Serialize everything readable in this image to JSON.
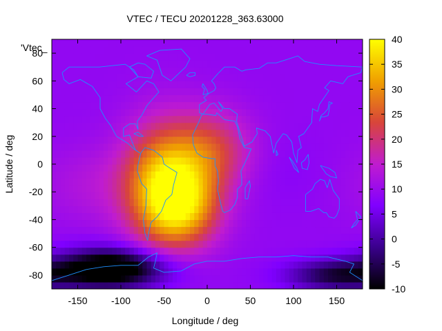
{
  "chart_data": {
    "type": "heatmap",
    "title": "VTEC / TECU 20201228_363.63000",
    "xlabel": "Longitude / deg",
    "ylabel": "Latitude / deg",
    "xlim": [
      -180,
      180
    ],
    "ylim": [
      -90,
      90
    ],
    "x_ticks": [
      -150,
      -100,
      -50,
      0,
      50,
      100,
      150
    ],
    "y_ticks": [
      -80,
      -60,
      -40,
      -20,
      0,
      20,
      40,
      60,
      80
    ],
    "colorbar": {
      "range": [
        -10,
        40
      ],
      "ticks": [
        -10,
        -5,
        0,
        5,
        10,
        15,
        20,
        25,
        30,
        35,
        40
      ],
      "colormap": "gnuplot-pm3d",
      "colors": [
        "#000000",
        "#3a008c",
        "#8000ff",
        "#c01ccf",
        "#d8453a",
        "#f0a000",
        "#ffff00"
      ]
    },
    "overlay_label": "'Vtec_",
    "grid": false,
    "background_tecu": 9,
    "features": [
      {
        "name": "south-american-anomaly-core",
        "lon": -50,
        "lat": -15,
        "peak_tecu": 34,
        "spread_lon": 32,
        "spread_lat": 30
      },
      {
        "name": "south-atlantic-bulge",
        "lon": -25,
        "lat": -30,
        "peak_tecu": 26,
        "spread_lon": 30,
        "spread_lat": 20
      },
      {
        "name": "western-africa-plume",
        "lon": 5,
        "lat": 10,
        "peak_tecu": 22,
        "spread_lon": 32,
        "spread_lat": 20
      },
      {
        "name": "central-pacific-band",
        "lon": -130,
        "lat": -15,
        "peak_tecu": 13,
        "spread_lon": 45,
        "spread_lat": 20
      },
      {
        "name": "indian-ocean-band",
        "lon": 90,
        "lat": -5,
        "peak_tecu": 8,
        "spread_lon": 35,
        "spread_lat": 18
      },
      {
        "name": "siberia-patch",
        "lon": 100,
        "lat": 50,
        "peak_tecu": 9,
        "spread_lon": 40,
        "spread_lat": 12
      },
      {
        "name": "southern-ocean-low",
        "lon": -110,
        "lat": -75,
        "peak_tecu": -17,
        "spread_lon": 45,
        "spread_lat": 10
      },
      {
        "name": "antarctic-low-east",
        "lon": 150,
        "lat": -80,
        "peak_tecu": -6,
        "spread_lon": 40,
        "spread_lat": 8
      }
    ],
    "coastlines": [
      {
        "name": "north-america",
        "points": [
          [
            -168,
            66
          ],
          [
            -160,
            70
          ],
          [
            -140,
            70
          ],
          [
            -125,
            70
          ],
          [
            -95,
            72
          ],
          [
            -85,
            68
          ],
          [
            -80,
            63
          ],
          [
            -94,
            58
          ],
          [
            -82,
            52
          ],
          [
            -70,
            60
          ],
          [
            -62,
            58
          ],
          [
            -56,
            52
          ],
          [
            -66,
            45
          ],
          [
            -70,
            42
          ],
          [
            -76,
            35
          ],
          [
            -81,
            31
          ],
          [
            -80,
            25
          ],
          [
            -83,
            29
          ],
          [
            -90,
            29
          ],
          [
            -97,
            26
          ],
          [
            -97,
            20
          ],
          [
            -90,
            21
          ],
          [
            -87,
            16
          ],
          [
            -83,
            10
          ],
          [
            -78,
            8
          ],
          [
            -85,
            11
          ],
          [
            -92,
            15
          ],
          [
            -105,
            20
          ],
          [
            -112,
            28
          ],
          [
            -118,
            33
          ],
          [
            -124,
            40
          ],
          [
            -124,
            48
          ],
          [
            -133,
            56
          ],
          [
            -147,
            61
          ],
          [
            -160,
            58
          ],
          [
            -166,
            61
          ],
          [
            -168,
            66
          ]
        ]
      },
      {
        "name": "greenland",
        "points": [
          [
            -55,
            82
          ],
          [
            -30,
            83
          ],
          [
            -20,
            76
          ],
          [
            -25,
            70
          ],
          [
            -42,
            60
          ],
          [
            -52,
            64
          ],
          [
            -58,
            75
          ],
          [
            -70,
            78
          ],
          [
            -55,
            82
          ]
        ]
      },
      {
        "name": "south-america",
        "points": [
          [
            -77,
            8
          ],
          [
            -72,
            12
          ],
          [
            -62,
            10
          ],
          [
            -52,
            5
          ],
          [
            -50,
            0
          ],
          [
            -43,
            -3
          ],
          [
            -35,
            -6
          ],
          [
            -39,
            -15
          ],
          [
            -41,
            -22
          ],
          [
            -48,
            -26
          ],
          [
            -53,
            -34
          ],
          [
            -58,
            -38
          ],
          [
            -65,
            -42
          ],
          [
            -68,
            -50
          ],
          [
            -69,
            -55
          ],
          [
            -72,
            -50
          ],
          [
            -74,
            -40
          ],
          [
            -71,
            -30
          ],
          [
            -70,
            -18
          ],
          [
            -76,
            -14
          ],
          [
            -81,
            -5
          ],
          [
            -80,
            0
          ],
          [
            -77,
            8
          ]
        ]
      },
      {
        "name": "eurasia",
        "points": [
          [
            -9,
            43
          ],
          [
            -9,
            37
          ],
          [
            -5,
            36
          ],
          [
            3,
            43
          ],
          [
            8,
            44
          ],
          [
            12,
            41
          ],
          [
            16,
            38
          ],
          [
            18,
            40
          ],
          [
            13,
            45
          ],
          [
            20,
            40
          ],
          [
            26,
            40
          ],
          [
            35,
            36
          ],
          [
            34,
            31
          ],
          [
            43,
            13
          ],
          [
            52,
            16
          ],
          [
            58,
            22
          ],
          [
            57,
            26
          ],
          [
            62,
            25
          ],
          [
            67,
            24
          ],
          [
            73,
            20
          ],
          [
            77,
            8
          ],
          [
            80,
            15
          ],
          [
            88,
            22
          ],
          [
            92,
            21
          ],
          [
            98,
            16
          ],
          [
            100,
            8
          ],
          [
            104,
            1
          ],
          [
            105,
            10
          ],
          [
            109,
            12
          ],
          [
            106,
            20
          ],
          [
            112,
            22
          ],
          [
            121,
            30
          ],
          [
            122,
            40
          ],
          [
            128,
            38
          ],
          [
            130,
            43
          ],
          [
            141,
            53
          ],
          [
            136,
            55
          ],
          [
            143,
            60
          ],
          [
            157,
            58
          ],
          [
            163,
            63
          ],
          [
            178,
            66
          ],
          [
            180,
            70
          ],
          [
            150,
            71
          ],
          [
            130,
            72
          ],
          [
            113,
            74
          ],
          [
            105,
            78
          ],
          [
            95,
            76
          ],
          [
            80,
            73
          ],
          [
            70,
            73
          ],
          [
            60,
            69
          ],
          [
            45,
            68
          ],
          [
            40,
            67
          ],
          [
            32,
            70
          ],
          [
            20,
            70
          ],
          [
            12,
            65
          ],
          [
            5,
            60
          ],
          [
            8,
            58
          ],
          [
            10,
            55
          ],
          [
            8,
            53
          ],
          [
            2,
            51
          ],
          [
            -4,
            48
          ],
          [
            -1,
            46
          ],
          [
            -9,
            43
          ]
        ]
      },
      {
        "name": "africa",
        "points": [
          [
            -17,
            21
          ],
          [
            -16,
            14
          ],
          [
            -12,
            8
          ],
          [
            -5,
            5
          ],
          [
            5,
            4
          ],
          [
            9,
            4
          ],
          [
            9,
            -1
          ],
          [
            12,
            -5
          ],
          [
            13,
            -12
          ],
          [
            12,
            -18
          ],
          [
            15,
            -27
          ],
          [
            18,
            -34
          ],
          [
            20,
            -35
          ],
          [
            27,
            -33
          ],
          [
            32,
            -29
          ],
          [
            35,
            -24
          ],
          [
            35,
            -18
          ],
          [
            40,
            -15
          ],
          [
            40,
            -10
          ],
          [
            39,
            -5
          ],
          [
            43,
            0
          ],
          [
            51,
            11
          ],
          [
            43,
            12
          ],
          [
            38,
            18
          ],
          [
            35,
            27
          ],
          [
            32,
            31
          ],
          [
            20,
            32
          ],
          [
            11,
            37
          ],
          [
            10,
            35
          ],
          [
            0,
            36
          ],
          [
            -6,
            36
          ],
          [
            -10,
            30
          ],
          [
            -17,
            21
          ]
        ]
      },
      {
        "name": "australia",
        "points": [
          [
            114,
            -22
          ],
          [
            114,
            -34
          ],
          [
            120,
            -34
          ],
          [
            129,
            -32
          ],
          [
            135,
            -35
          ],
          [
            138,
            -35
          ],
          [
            141,
            -38
          ],
          [
            147,
            -39
          ],
          [
            150,
            -37
          ],
          [
            153,
            -32
          ],
          [
            153,
            -25
          ],
          [
            146,
            -19
          ],
          [
            142,
            -11
          ],
          [
            139,
            -17
          ],
          [
            136,
            -12
          ],
          [
            131,
            -11
          ],
          [
            125,
            -14
          ],
          [
            122,
            -18
          ],
          [
            114,
            -22
          ]
        ]
      },
      {
        "name": "antarctica",
        "points": [
          [
            -180,
            -84
          ],
          [
            -160,
            -80
          ],
          [
            -140,
            -76
          ],
          [
            -120,
            -74
          ],
          [
            -100,
            -73
          ],
          [
            -80,
            -73
          ],
          [
            -68,
            -67
          ],
          [
            -58,
            -64
          ],
          [
            -60,
            -70
          ],
          [
            -62,
            -75
          ],
          [
            -50,
            -78
          ],
          [
            -30,
            -77
          ],
          [
            -15,
            -72
          ],
          [
            0,
            -70
          ],
          [
            20,
            -70
          ],
          [
            40,
            -68
          ],
          [
            60,
            -67
          ],
          [
            80,
            -67
          ],
          [
            100,
            -66
          ],
          [
            120,
            -67
          ],
          [
            140,
            -67
          ],
          [
            160,
            -70
          ],
          [
            170,
            -72
          ],
          [
            165,
            -78
          ],
          [
            180,
            -84
          ]
        ]
      },
      {
        "name": "great-britain",
        "points": [
          [
            -5,
            50
          ],
          [
            1,
            51
          ],
          [
            0,
            53
          ],
          [
            -3,
            56
          ],
          [
            -5,
            58
          ],
          [
            -6,
            56
          ],
          [
            -3,
            54
          ],
          [
            -5,
            50
          ]
        ]
      },
      {
        "name": "madagascar",
        "points": [
          [
            44,
            -25
          ],
          [
            47,
            -25
          ],
          [
            50,
            -16
          ],
          [
            49,
            -12
          ],
          [
            44,
            -17
          ],
          [
            44,
            -25
          ]
        ]
      },
      {
        "name": "japan",
        "points": [
          [
            130,
            31
          ],
          [
            132,
            34
          ],
          [
            135,
            34
          ],
          [
            140,
            35
          ],
          [
            141,
            38
          ],
          [
            142,
            43
          ],
          [
            145,
            44
          ],
          [
            141,
            45
          ],
          [
            140,
            40
          ],
          [
            136,
            37
          ],
          [
            132,
            35
          ],
          [
            130,
            31
          ]
        ]
      },
      {
        "name": "borneo",
        "points": [
          [
            109,
            1
          ],
          [
            110,
            -3
          ],
          [
            116,
            -4
          ],
          [
            118,
            1
          ],
          [
            117,
            7
          ],
          [
            113,
            3
          ],
          [
            109,
            1
          ]
        ]
      },
      {
        "name": "sumatra",
        "points": [
          [
            95,
            5
          ],
          [
            99,
            2
          ],
          [
            104,
            -3
          ],
          [
            106,
            -6
          ],
          [
            101,
            -3
          ],
          [
            95,
            5
          ]
        ]
      },
      {
        "name": "new-guinea",
        "points": [
          [
            131,
            -1
          ],
          [
            141,
            -3
          ],
          [
            148,
            -6
          ],
          [
            150,
            -10
          ],
          [
            143,
            -9
          ],
          [
            138,
            -7
          ],
          [
            131,
            -1
          ]
        ]
      },
      {
        "name": "new-zealand",
        "points": [
          [
            172,
            -34
          ],
          [
            178,
            -38
          ],
          [
            175,
            -41
          ],
          [
            172,
            -44
          ],
          [
            167,
            -46
          ],
          [
            170,
            -43
          ],
          [
            174,
            -40
          ],
          [
            172,
            -34
          ]
        ]
      },
      {
        "name": "iceland",
        "points": [
          [
            -24,
            64
          ],
          [
            -20,
            66
          ],
          [
            -14,
            66
          ],
          [
            -14,
            64
          ],
          [
            -20,
            63
          ],
          [
            -24,
            64
          ]
        ]
      },
      {
        "name": "cuba",
        "points": [
          [
            -85,
            22
          ],
          [
            -80,
            23
          ],
          [
            -74,
            20
          ],
          [
            -78,
            20
          ],
          [
            -85,
            22
          ]
        ]
      },
      {
        "name": "baffin-island",
        "points": [
          [
            -80,
            63
          ],
          [
            -65,
            62
          ],
          [
            -62,
            67
          ],
          [
            -72,
            72
          ],
          [
            -80,
            73
          ],
          [
            -90,
            70
          ],
          [
            -80,
            63
          ]
        ]
      },
      {
        "name": "sri-lanka",
        "points": [
          [
            80,
            6
          ],
          [
            82,
            7
          ],
          [
            80,
            10
          ],
          [
            80,
            6
          ]
        ]
      }
    ]
  }
}
